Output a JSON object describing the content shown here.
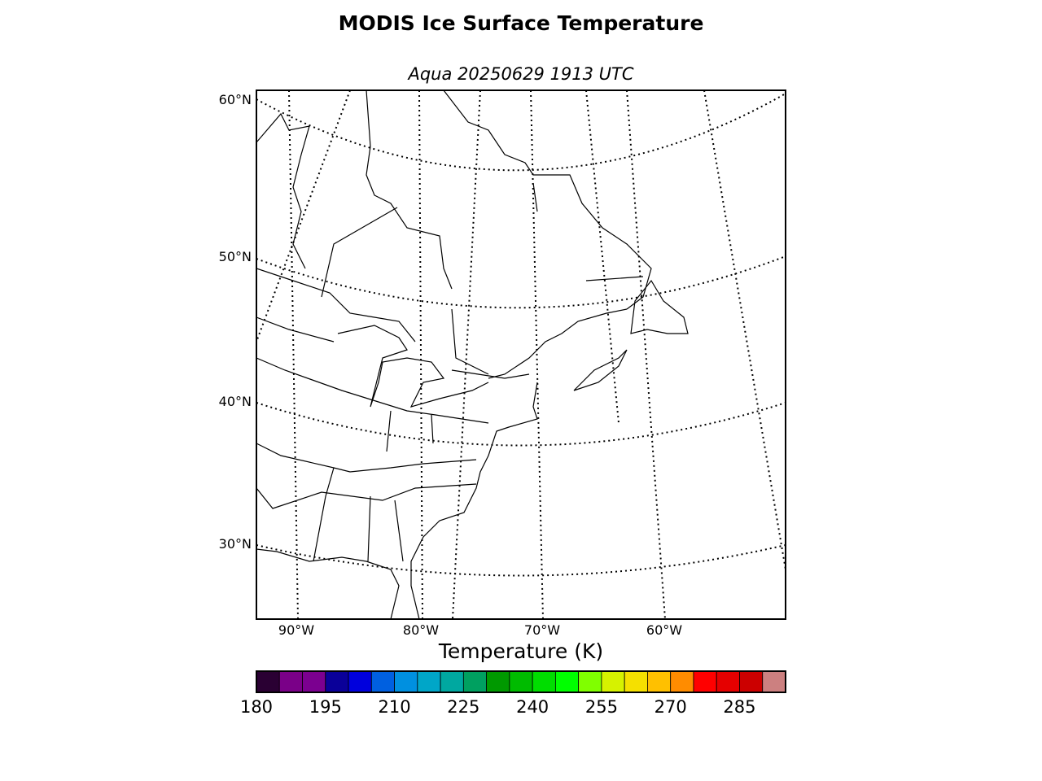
{
  "title": "MODIS Ice Surface Temperature",
  "subtitle": "Aqua 20250629 1913 UTC",
  "map": {
    "lat_labels": [
      "60°N",
      "50°N",
      "40°N",
      "30°N"
    ],
    "lon_labels": [
      "90°W",
      "80°W",
      "70°W",
      "60°W"
    ]
  },
  "colorbar": {
    "label": "Temperature (K)",
    "min": 180,
    "max": 295,
    "step": 5,
    "tick_labels": [
      "180",
      "195",
      "210",
      "225",
      "240",
      "255",
      "270",
      "285"
    ],
    "colors": [
      "#2a0033",
      "#7a0088",
      "#7b0090",
      "#0a0099",
      "#0000dd",
      "#0060e0",
      "#0090e0",
      "#00a6c8",
      "#00a8a0",
      "#00a060",
      "#009900",
      "#00bb00",
      "#00dd00",
      "#00ff00",
      "#80ff00",
      "#d6f200",
      "#f5e000",
      "#ffc000",
      "#ff8c00",
      "#ff0000",
      "#e50000",
      "#cc0000",
      "#cc8080"
    ]
  }
}
